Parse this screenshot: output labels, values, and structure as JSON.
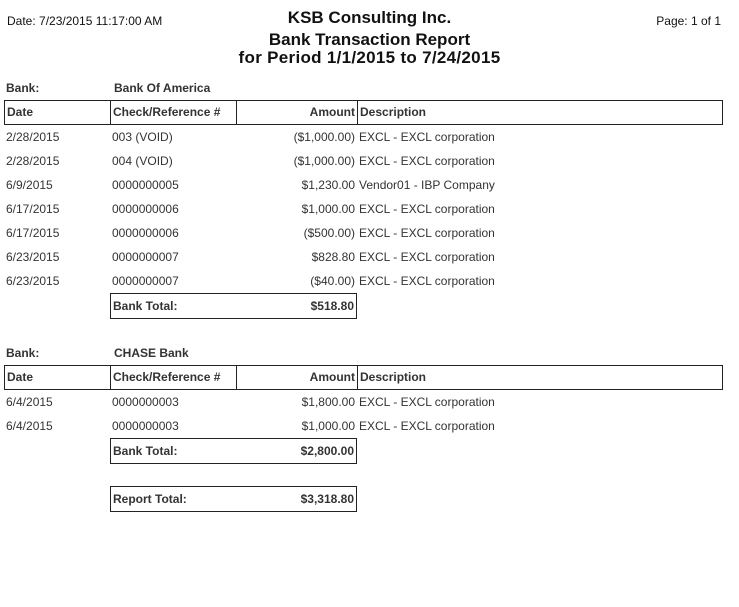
{
  "header": {
    "date": "Date: 7/23/2015 11:17:00 AM",
    "page": "Page: 1 of 1",
    "company": "KSB Consulting Inc.",
    "report_title": "Bank Transaction Report",
    "period": "for Period 1/1/2015 to 7/24/2015"
  },
  "columns": [
    "Date",
    "Check/Reference #",
    "Amount",
    "Description"
  ],
  "bank_label": "Bank:",
  "bank_total_label": "Bank Total:",
  "banks": [
    {
      "name": "Bank Of America",
      "total": "$518.80",
      "rows": [
        [
          "2/28/2015",
          "003 (VOID)",
          "($1,000.00)",
          "EXCL - EXCL corporation"
        ],
        [
          "2/28/2015",
          "004 (VOID)",
          "($1,000.00)",
          "EXCL - EXCL corporation"
        ],
        [
          "6/9/2015",
          "0000000005",
          "$1,230.00",
          "Vendor01 - IBP Company"
        ],
        [
          "6/17/2015",
          "0000000006",
          "$1,000.00",
          "EXCL - EXCL corporation"
        ],
        [
          "6/17/2015",
          "0000000006",
          "($500.00)",
          "EXCL - EXCL corporation"
        ],
        [
          "6/23/2015",
          "0000000007",
          "$828.80",
          "EXCL - EXCL corporation"
        ],
        [
          "6/23/2015",
          "0000000007",
          "($40.00)",
          "EXCL - EXCL corporation"
        ]
      ]
    },
    {
      "name": "CHASE Bank",
      "total": "$2,800.00",
      "rows": [
        [
          "6/4/2015",
          "0000000003",
          "$1,800.00",
          "EXCL - EXCL corporation"
        ],
        [
          "6/4/2015",
          "0000000003",
          "$1,000.00",
          "EXCL - EXCL corporation"
        ]
      ]
    }
  ],
  "report_total": {
    "label": "Report Total:",
    "value": "$3,318.80"
  }
}
